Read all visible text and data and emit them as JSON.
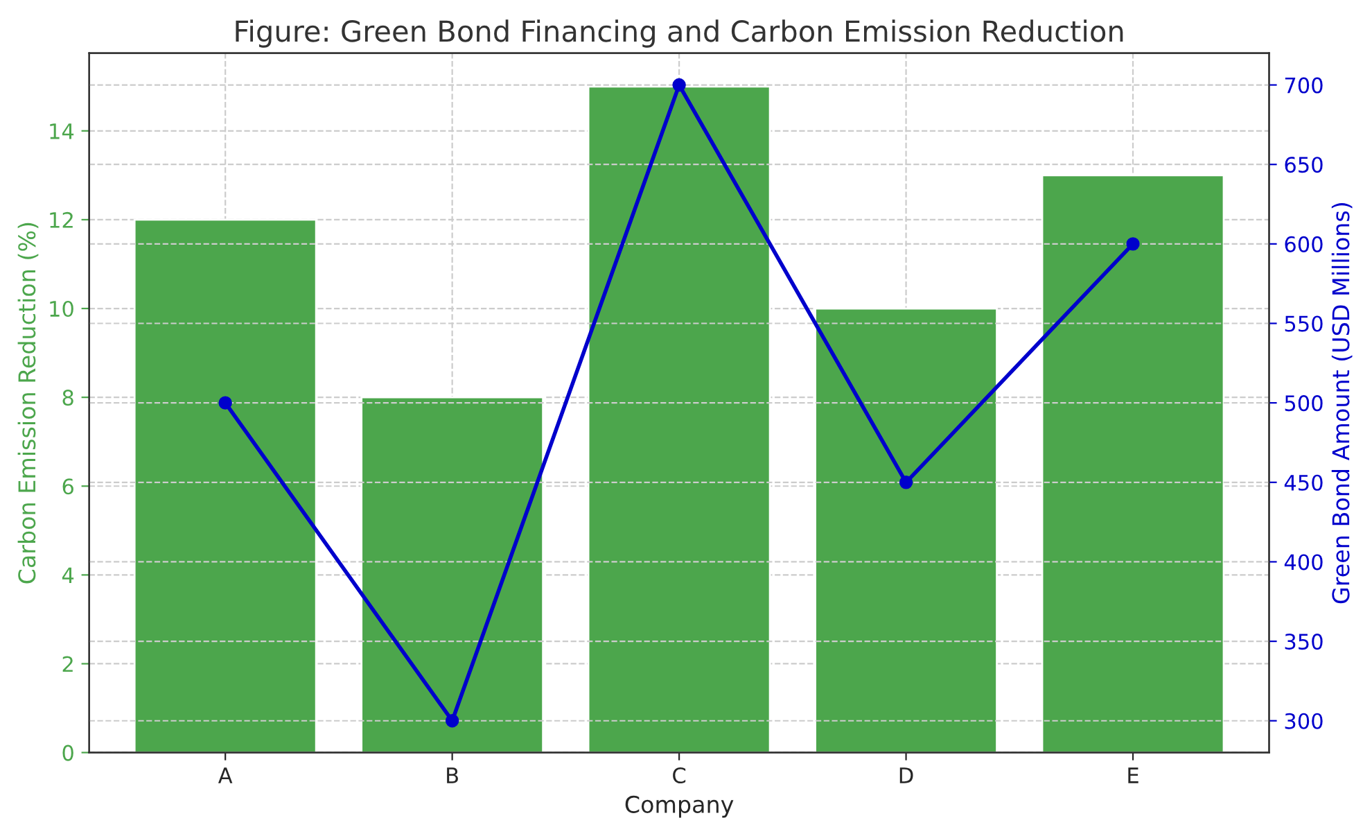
{
  "chart_data": {
    "type": "bar",
    "title": "Figure: Green Bond Financing and Carbon Emission Reduction",
    "xlabel": "Company",
    "ylabel": "Carbon Emission Reduction (%)",
    "y2label": "Green Bond Amount (USD Millions)",
    "categories": [
      "A",
      "B",
      "C",
      "D",
      "E"
    ],
    "series": [
      {
        "color": "#4ca64c",
        "values": [
          12,
          8,
          15,
          10,
          13
        ]
      },
      {
        "type": "line",
        "axis": "y2",
        "color": "#0000cc",
        "values": [
          500,
          300,
          700,
          450,
          600
        ]
      }
    ],
    "ylim": [
      0,
      15.75
    ],
    "yticks": [
      0,
      2,
      4,
      6,
      8,
      10,
      12,
      14
    ],
    "y2lim": [
      280,
      720
    ],
    "y2ticks": [
      300,
      350,
      400,
      450,
      500,
      550,
      600,
      650,
      700
    ],
    "grid": true,
    "marker": "circle",
    "line_style": "solid"
  }
}
